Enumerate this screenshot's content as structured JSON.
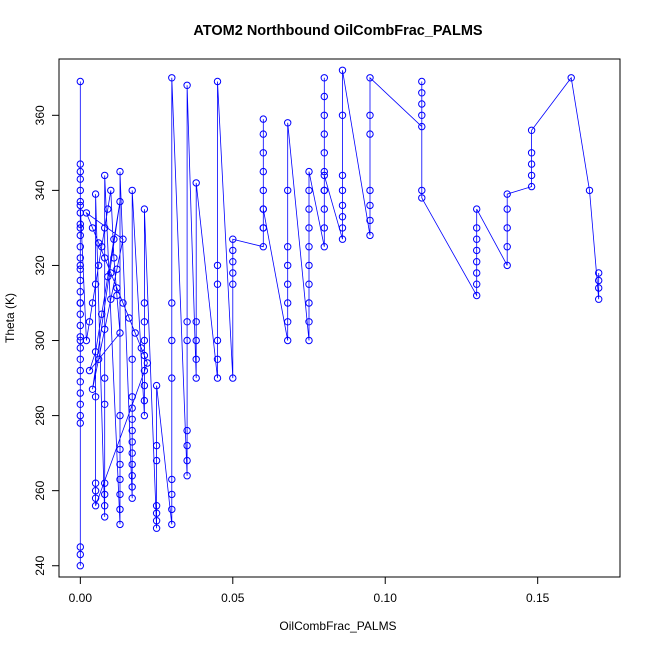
{
  "chart_data": {
    "type": "scatter",
    "title": "ATOM2 Northbound OilCombFrac_PALMS",
    "xlabel": "OilCombFrac_PALMS",
    "ylabel": "Theta (K)",
    "xlim": [
      -0.007,
      0.177
    ],
    "ylim": [
      237,
      375
    ],
    "x_ticks": [
      0.0,
      0.05,
      0.1,
      0.15
    ],
    "x_tick_labels": [
      "0.00",
      "0.05",
      "0.10",
      "0.15"
    ],
    "y_ticks": [
      240,
      260,
      280,
      300,
      320,
      340,
      360
    ],
    "y_tick_labels": [
      "240",
      "260",
      "280",
      "300",
      "320",
      "340",
      "360"
    ],
    "grid": false,
    "legend": "none",
    "marker": "open-circle",
    "series_color": "#0000ff",
    "series": [
      {
        "x": [
          0.0,
          0.0,
          0.0,
          0.0,
          0.0,
          0.0,
          0.0,
          0.0,
          0.0,
          0.0,
          0.0,
          0.0,
          0.0,
          0.0,
          0.0,
          0.0,
          0.0,
          0.0,
          0.0,
          0.0,
          0.0,
          0.0,
          0.0,
          0.0,
          0.0,
          0.0,
          0.0,
          0.0,
          0.0,
          0.0,
          0.0,
          0.0,
          0.0,
          0.0,
          0.002,
          0.003,
          0.004,
          0.005,
          0.006,
          0.007,
          0.008,
          0.009,
          0.01,
          0.011,
          0.012,
          0.013,
          0.003,
          0.005,
          0.007,
          0.009,
          0.011,
          0.013,
          0.004,
          0.006,
          0.008,
          0.01,
          0.012,
          0.014,
          0.002,
          0.004,
          0.006,
          0.008,
          0.01,
          0.012,
          0.014,
          0.016,
          0.018,
          0.02,
          0.022,
          0.005,
          0.005,
          0.005,
          0.005,
          0.005,
          0.005,
          0.008,
          0.008,
          0.008,
          0.008,
          0.008,
          0.008,
          0.008,
          0.013,
          0.013,
          0.013,
          0.013,
          0.013,
          0.013,
          0.013,
          0.013,
          0.017,
          0.017,
          0.017,
          0.017,
          0.017,
          0.017,
          0.017,
          0.017,
          0.017,
          0.017,
          0.017,
          0.017,
          0.021,
          0.021,
          0.021,
          0.021,
          0.021,
          0.021,
          0.021,
          0.021,
          0.021,
          0.025,
          0.025,
          0.025,
          0.025,
          0.025,
          0.025,
          0.025,
          0.03,
          0.03,
          0.03,
          0.03,
          0.03,
          0.03,
          0.03,
          0.03,
          0.035,
          0.035,
          0.035,
          0.035,
          0.035,
          0.035,
          0.035,
          0.038,
          0.038,
          0.038,
          0.038,
          0.038,
          0.045,
          0.045,
          0.045,
          0.045,
          0.045,
          0.045,
          0.05,
          0.05,
          0.05,
          0.05,
          0.05,
          0.05,
          0.06,
          0.06,
          0.06,
          0.06,
          0.06,
          0.06,
          0.06,
          0.06,
          0.06,
          0.06,
          0.068,
          0.068,
          0.068,
          0.068,
          0.068,
          0.068,
          0.068,
          0.068,
          0.075,
          0.075,
          0.075,
          0.075,
          0.075,
          0.075,
          0.075,
          0.075,
          0.075,
          0.075,
          0.08,
          0.08,
          0.08,
          0.08,
          0.08,
          0.08,
          0.08,
          0.08,
          0.08,
          0.08,
          0.08,
          0.08,
          0.086,
          0.086,
          0.086,
          0.086,
          0.086,
          0.086,
          0.086,
          0.086,
          0.095,
          0.095,
          0.095,
          0.095,
          0.095,
          0.095,
          0.095,
          0.112,
          0.112,
          0.112,
          0.112,
          0.112,
          0.112,
          0.112,
          0.13,
          0.13,
          0.13,
          0.13,
          0.13,
          0.13,
          0.13,
          0.13,
          0.14,
          0.14,
          0.14,
          0.14,
          0.14,
          0.148,
          0.148,
          0.148,
          0.148,
          0.148,
          0.161,
          0.167,
          0.17,
          0.17,
          0.17,
          0.17
        ],
        "y": [
          240,
          243,
          245,
          278,
          280,
          283,
          286,
          289,
          292,
          295,
          298,
          301,
          304,
          307,
          310,
          313,
          316,
          319,
          322,
          325,
          328,
          331,
          334,
          337,
          340,
          343,
          345,
          347,
          369,
          300,
          310,
          320,
          330,
          336,
          300,
          305,
          310,
          315,
          320,
          325,
          330,
          335,
          340,
          322,
          312,
          302,
          292,
          297,
          307,
          317,
          327,
          337,
          287,
          295,
          303,
          311,
          319,
          327,
          334,
          330,
          326,
          322,
          318,
          314,
          310,
          306,
          302,
          298,
          294,
          256,
          258,
          260,
          262,
          285,
          339,
          253,
          256,
          259,
          262,
          283,
          290,
          344,
          251,
          255,
          259,
          263,
          267,
          271,
          280,
          345,
          258,
          261,
          264,
          267,
          270,
          273,
          276,
          279,
          282,
          285,
          295,
          340,
          280,
          284,
          288,
          292,
          296,
          300,
          305,
          310,
          335,
          250,
          252,
          254,
          256,
          268,
          272,
          288,
          251,
          255,
          259,
          263,
          290,
          300,
          310,
          370,
          264,
          268,
          272,
          276,
          300,
          305,
          368,
          290,
          295,
          300,
          305,
          342,
          290,
          295,
          300,
          315,
          320,
          369,
          290,
          315,
          318,
          321,
          324,
          327,
          325,
          330,
          335,
          340,
          345,
          350,
          355,
          359,
          330,
          335,
          300,
          305,
          310,
          315,
          320,
          325,
          340,
          358,
          300,
          305,
          310,
          315,
          320,
          325,
          330,
          335,
          340,
          345,
          325,
          330,
          335,
          340,
          345,
          350,
          355,
          360,
          365,
          370,
          340,
          344,
          327,
          330,
          333,
          336,
          340,
          344,
          360,
          372,
          328,
          332,
          336,
          340,
          355,
          360,
          370,
          357,
          360,
          363,
          366,
          369,
          340,
          338,
          312,
          315,
          318,
          321,
          324,
          327,
          330,
          335,
          320,
          325,
          330,
          335,
          339,
          341,
          344,
          347,
          350,
          356,
          370,
          340,
          311,
          314,
          316,
          318
        ]
      }
    ]
  }
}
